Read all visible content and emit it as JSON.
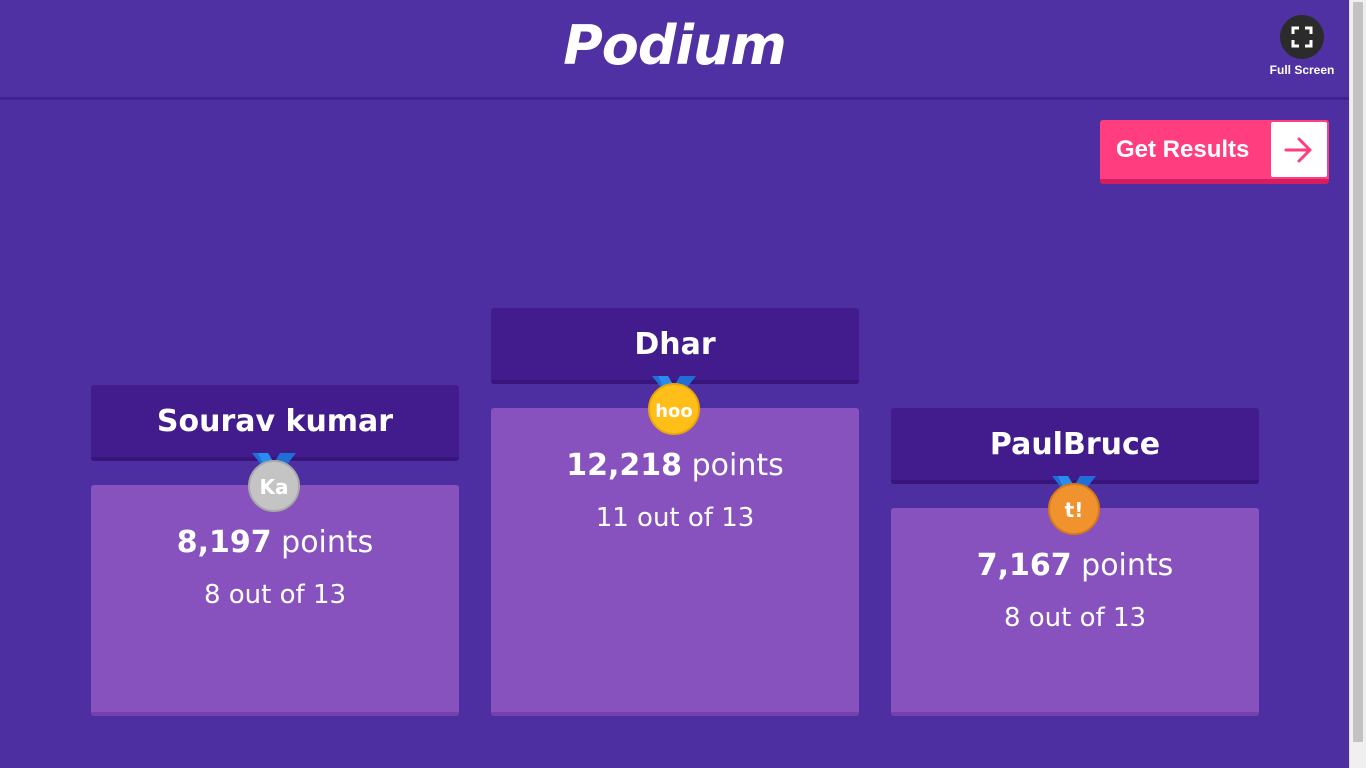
{
  "header": {
    "title": "Podium",
    "fullscreen_label": "Full Screen"
  },
  "actions": {
    "get_results_label": "Get Results"
  },
  "podium": [
    {
      "place": 2,
      "name": "Sourav kumar",
      "points": "8,197",
      "points_unit": "points",
      "correct": "8 out of 13",
      "medal": "silver",
      "medal_text": "Ka",
      "medal_color": "#c4c4c4"
    },
    {
      "place": 1,
      "name": "Dhar",
      "points": "12,218",
      "points_unit": "points",
      "correct": "11 out of 13",
      "medal": "gold",
      "medal_text": "hoo",
      "medal_color": "#ffbe18"
    },
    {
      "place": 3,
      "name": "PaulBruce",
      "points": "7,167",
      "points_unit": "points",
      "correct": "8 out of 13",
      "medal": "bronze",
      "medal_text": "t!",
      "medal_color": "#f0922e"
    }
  ],
  "colors": {
    "background": "#4d2fa2",
    "name_box": "#421c8c",
    "score_box": "#8752bd",
    "accent_button": "#ff3d7f"
  }
}
